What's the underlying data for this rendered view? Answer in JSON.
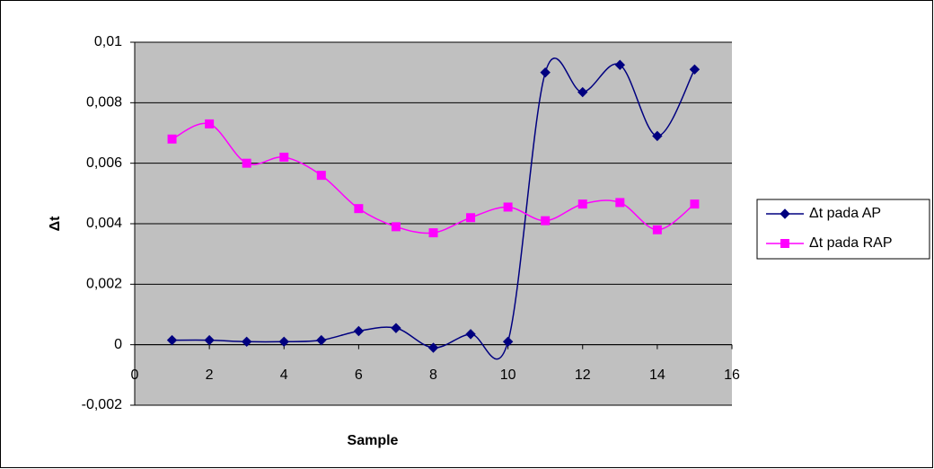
{
  "chart_data": {
    "type": "scatter",
    "x_label": "Sample",
    "y_label": "Δt",
    "x": [
      1,
      2,
      3,
      4,
      5,
      6,
      7,
      8,
      9,
      10,
      11,
      12,
      13,
      14,
      15
    ],
    "series": [
      {
        "name": "Δt pada AP",
        "color": "#000080",
        "marker": "diamond",
        "values": [
          0.00015,
          0.00015,
          0.0001,
          0.0001,
          0.00015,
          0.00045,
          0.00055,
          -0.0001,
          0.00035,
          0.0001,
          0.009,
          0.00835,
          0.00925,
          0.0069,
          0.0091
        ]
      },
      {
        "name": "Δt pada RAP",
        "color": "#ff00ff",
        "marker": "square",
        "values": [
          0.0068,
          0.0073,
          0.006,
          0.0062,
          0.0056,
          0.0045,
          0.0039,
          0.0037,
          0.0042,
          0.00455,
          0.0041,
          0.00465,
          0.0047,
          0.0038,
          0.00465
        ]
      }
    ],
    "smooth": true,
    "xlim": [
      0,
      16
    ],
    "xticks": [
      0,
      2,
      4,
      6,
      8,
      10,
      12,
      14,
      16
    ],
    "ylim": [
      -0.002,
      0.01
    ],
    "yticks": [
      {
        "value": -0.002,
        "label": "-0,002"
      },
      0,
      {
        "value": 0.002,
        "label": "0,002"
      },
      {
        "value": 0.004,
        "label": "0,004"
      },
      {
        "value": 0.006,
        "label": "0,006"
      },
      {
        "value": 0.008,
        "label": "0,008"
      },
      {
        "value": 0.01,
        "label": "0,01"
      }
    ],
    "grid": true,
    "legend": "right"
  }
}
